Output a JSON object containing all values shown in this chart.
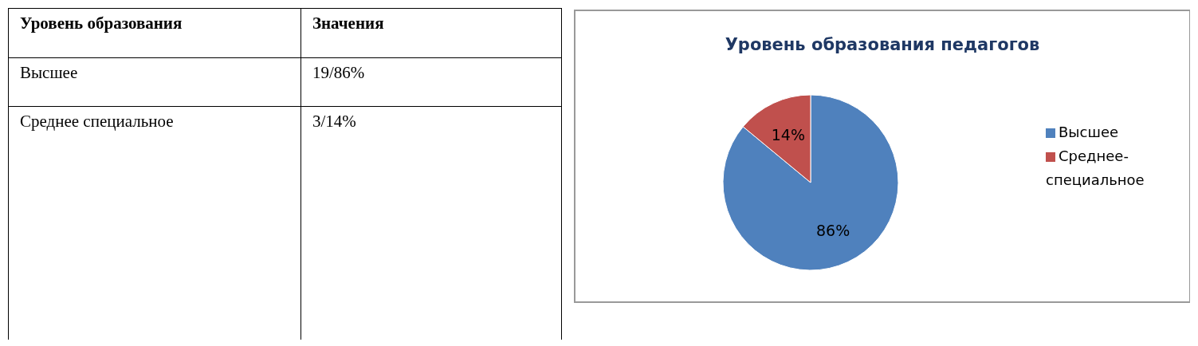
{
  "chart_data": [
    {
      "type": "other",
      "annotations": [
        "Уровень образования",
        "Значения",
        "Высшее",
        "19/86%",
        "Среднее специальное",
        "3/14%"
      ]
    },
    {
      "type": "pie",
      "title": "Уровень образования педагогов",
      "categories": [
        "Высшее",
        "Среднее-специальное"
      ],
      "values": [
        86,
        14
      ],
      "colors": [
        "#4f81bd",
        "#c0504d"
      ],
      "value_labels": [
        "86%",
        "14%"
      ],
      "legend": "right"
    }
  ]
}
